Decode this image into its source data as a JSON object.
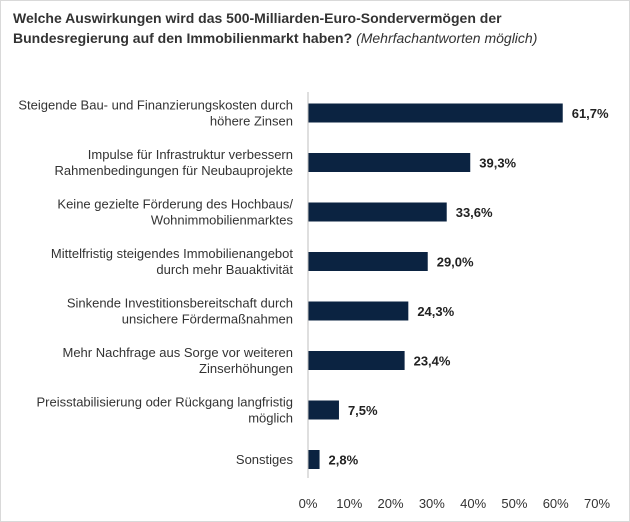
{
  "chart_data": {
    "type": "bar",
    "orientation": "horizontal",
    "title": "Welche Auswirkungen wird das 500-Milliarden-Euro-Sondervermögen der Bundesregierung auf den Immobilienmarkt haben?",
    "subtitle": "(Mehrfachantworten möglich)",
    "categories": [
      [
        "Steigende Bau- und Finanzierungskosten durch",
        "höhere Zinsen"
      ],
      [
        "Impulse für Infrastruktur verbessern",
        "Rahmenbedingungen für Neubauprojekte"
      ],
      [
        "Keine gezielte Förderung des Hochbaus/",
        "Wohnimmobilienmarktes"
      ],
      [
        "Mittelfristig steigendes Immobilienangebot",
        "durch mehr Bauaktivität"
      ],
      [
        "Sinkende Investitionsbereitschaft durch",
        "unsichere Fördermaßnahmen"
      ],
      [
        "Mehr Nachfrage aus Sorge vor weiteren",
        "Zinserhöhungen"
      ],
      [
        "Preisstabilisierung oder Rückgang langfristig",
        "möglich"
      ],
      [
        "Sonstiges"
      ]
    ],
    "values": [
      61.7,
      39.3,
      33.6,
      29.0,
      24.3,
      23.4,
      7.5,
      2.8
    ],
    "value_labels": [
      "61,7%",
      "39,3%",
      "33,6%",
      "29,0%",
      "24,3%",
      "23,4%",
      "7,5%",
      "2,8%"
    ],
    "xlim": [
      0,
      70
    ],
    "xticks": [
      "0%",
      "10%",
      "20%",
      "30%",
      "40%",
      "50%",
      "60%",
      "70%"
    ],
    "xlabel": "",
    "ylabel": "",
    "grid": false,
    "legend": "none"
  },
  "colors": {
    "bar": "#0b2341",
    "axis": "#bfbfbf"
  }
}
